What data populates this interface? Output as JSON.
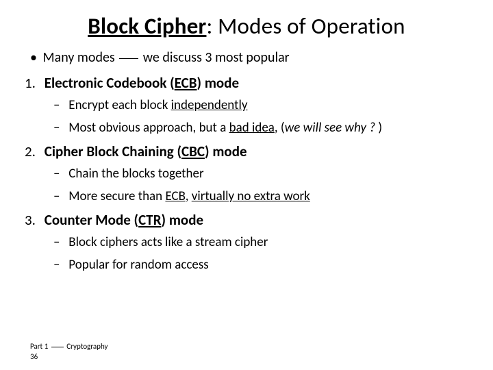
{
  "title": {
    "bold_underlined": "Block Cipher",
    "rest": ": Modes of Operation"
  },
  "bullet": {
    "prefix": "Many modes ",
    "suffix": " we discuss 3 most popular"
  },
  "items": [
    {
      "num": "1.",
      "label_pre": "Electronic Codebook (",
      "label_u": "ECB",
      "label_post": ") mode",
      "subs": [
        {
          "pre": "Encrypt each block ",
          "u": "independently",
          "post": ""
        },
        {
          "pre": "Most obvious approach, but a ",
          "u": "bad idea",
          "post": ", (",
          "italic": "we will see why ? ",
          "post2": ")"
        }
      ]
    },
    {
      "num": "2.",
      "label_pre": "Cipher Block Chaining (",
      "label_u": "CBC",
      "label_post": ") mode",
      "subs": [
        {
          "pre": "Chain the blocks together",
          "u": "",
          "post": ""
        },
        {
          "pre": "More secure than ",
          "u": "ECB",
          "post": ", ",
          "u2": "virtually no extra work",
          "post2": ""
        }
      ]
    },
    {
      "num": "3.",
      "label_pre": "Counter Mode (",
      "label_u": "CTR",
      "label_post": ") mode",
      "subs": [
        {
          "pre": "Block ciphers acts like a stream cipher",
          "u": "",
          "post": ""
        },
        {
          "pre": "Popular for random access",
          "u": "",
          "post": ""
        }
      ]
    }
  ],
  "footer": {
    "line1_pre": "Part 1 ",
    "line1_post": " Cryptography",
    "line2": "36"
  },
  "colors": {
    "background": "#ffffff",
    "text": "#000000"
  },
  "typography": {
    "title_fontsize": 33,
    "body_fontsize": 20,
    "heading_fontsize": 21,
    "sub_fontsize": 19,
    "footer_fontsize": 11,
    "font_family": "Calibri"
  }
}
